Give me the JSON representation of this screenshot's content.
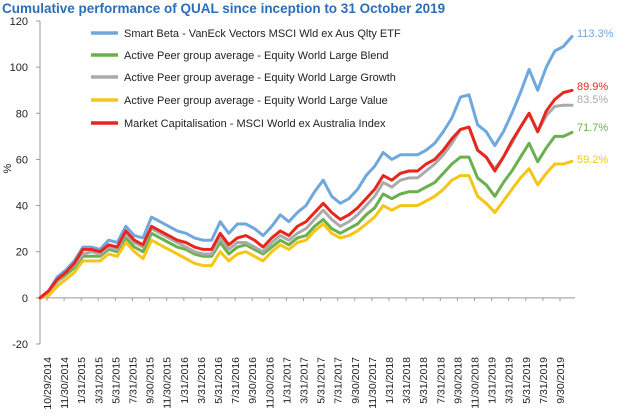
{
  "chart_data": {
    "type": "line",
    "title": "Cumulative performance of QUAL since inception to 31 October 2019",
    "xlabel": "",
    "ylabel": "%",
    "ylim": [
      -20,
      120
    ],
    "yticks": [
      -20,
      0,
      20,
      40,
      60,
      80,
      100,
      120
    ],
    "grid": false,
    "legend": "top-center",
    "x_tick_labels": [
      "10/29/2014",
      "11/30/2014",
      "1/31/2015",
      "3/31/2015",
      "5/31/2015",
      "7/31/2015",
      "9/30/2015",
      "11/30/2015",
      "1/31/2016",
      "3/31/2016",
      "5/31/2016",
      "7/31/2016",
      "9/30/2016",
      "11/30/2016",
      "1/31/2017",
      "3/31/2017",
      "5/31/2017",
      "7/31/2017",
      "9/30/2017",
      "11/30/2017",
      "1/31/2018",
      "3/31/2018",
      "5/31/2018",
      "7/31/2018",
      "9/30/2018",
      "11/30/2018",
      "1/31/2019",
      "3/31/2019",
      "5/31/2019",
      "7/31/2019",
      "9/30/2019"
    ],
    "series": [
      {
        "name": "Smart Beta - VanEck Vectors MSCI Wld ex Aus Qlty ETF",
        "color": "#6fa8dc",
        "end_label": "113.3%",
        "values": [
          0,
          3,
          9,
          12,
          16,
          22,
          22,
          21,
          25,
          24,
          31,
          27,
          26,
          35,
          33,
          31,
          29,
          28,
          26,
          25,
          25,
          33,
          28,
          32,
          32,
          30,
          27,
          31,
          36,
          33,
          37,
          40,
          46,
          51,
          44,
          41,
          43,
          47,
          53,
          57,
          63,
          60,
          62,
          62,
          62,
          64,
          67,
          72,
          78,
          87,
          88,
          75,
          72,
          66,
          72,
          80,
          89,
          99,
          90,
          100,
          107,
          109,
          113.3
        ]
      },
      {
        "name": "Active Peer group average - Equity World Large Blend",
        "color": "#6ab04c",
        "end_label": "71.7%",
        "values": [
          0,
          2,
          7,
          10,
          13,
          18,
          18,
          18,
          21,
          20,
          26,
          22,
          20,
          28,
          26,
          24,
          22,
          21,
          19,
          18,
          18,
          24,
          19,
          22,
          23,
          21,
          19,
          22,
          25,
          23,
          26,
          27,
          31,
          34,
          30,
          28,
          30,
          32,
          36,
          39,
          45,
          43,
          45,
          46,
          46,
          48,
          50,
          54,
          58,
          61,
          61,
          52,
          49,
          44,
          50,
          55,
          61,
          67,
          59,
          65,
          70,
          70,
          71.7
        ]
      },
      {
        "name": "Active Peer group average - Equity World Large Growth",
        "color": "#aaaaaa",
        "end_label": "83.5%",
        "values": [
          0,
          2,
          7,
          11,
          14,
          19,
          20,
          19,
          22,
          21,
          28,
          24,
          22,
          30,
          28,
          26,
          24,
          22,
          20,
          19,
          19,
          26,
          21,
          24,
          24,
          22,
          20,
          24,
          27,
          25,
          28,
          30,
          34,
          38,
          34,
          31,
          33,
          36,
          40,
          44,
          50,
          48,
          51,
          52,
          52,
          55,
          58,
          62,
          67,
          73,
          74,
          64,
          61,
          56,
          61,
          67,
          74,
          80,
          72,
          79,
          83,
          83.5,
          83.5
        ]
      },
      {
        "name": "Active Peer group average - Equity World Large Value",
        "color": "#f5c518",
        "end_label": "59.2%",
        "values": [
          0,
          1,
          5,
          8,
          11,
          16,
          16,
          16,
          19,
          18,
          24,
          20,
          17,
          25,
          23,
          21,
          19,
          17,
          15,
          14,
          14,
          20,
          16,
          19,
          20,
          18,
          16,
          20,
          23,
          21,
          24,
          25,
          29,
          32,
          28,
          26,
          27,
          29,
          32,
          35,
          40,
          38,
          40,
          40,
          40,
          42,
          44,
          47,
          51,
          53,
          53,
          44,
          41,
          37,
          42,
          47,
          52,
          56,
          49,
          54,
          58,
          58,
          59.2
        ]
      },
      {
        "name": "Market Capitalisation - MSCI World ex Australia Index",
        "color": "#e8261e",
        "end_label": "89.9%",
        "values": [
          0,
          3,
          8,
          11,
          15,
          21,
          21,
          20,
          23,
          22,
          29,
          25,
          23,
          31,
          29,
          27,
          25,
          24,
          22,
          21,
          21,
          28,
          23,
          26,
          27,
          25,
          22,
          26,
          29,
          27,
          31,
          33,
          37,
          41,
          37,
          34,
          36,
          39,
          43,
          47,
          53,
          51,
          54,
          55,
          55,
          58,
          60,
          64,
          69,
          73,
          74,
          64,
          61,
          55,
          61,
          68,
          74,
          80,
          72,
          81,
          86,
          89,
          89.9
        ]
      }
    ]
  }
}
